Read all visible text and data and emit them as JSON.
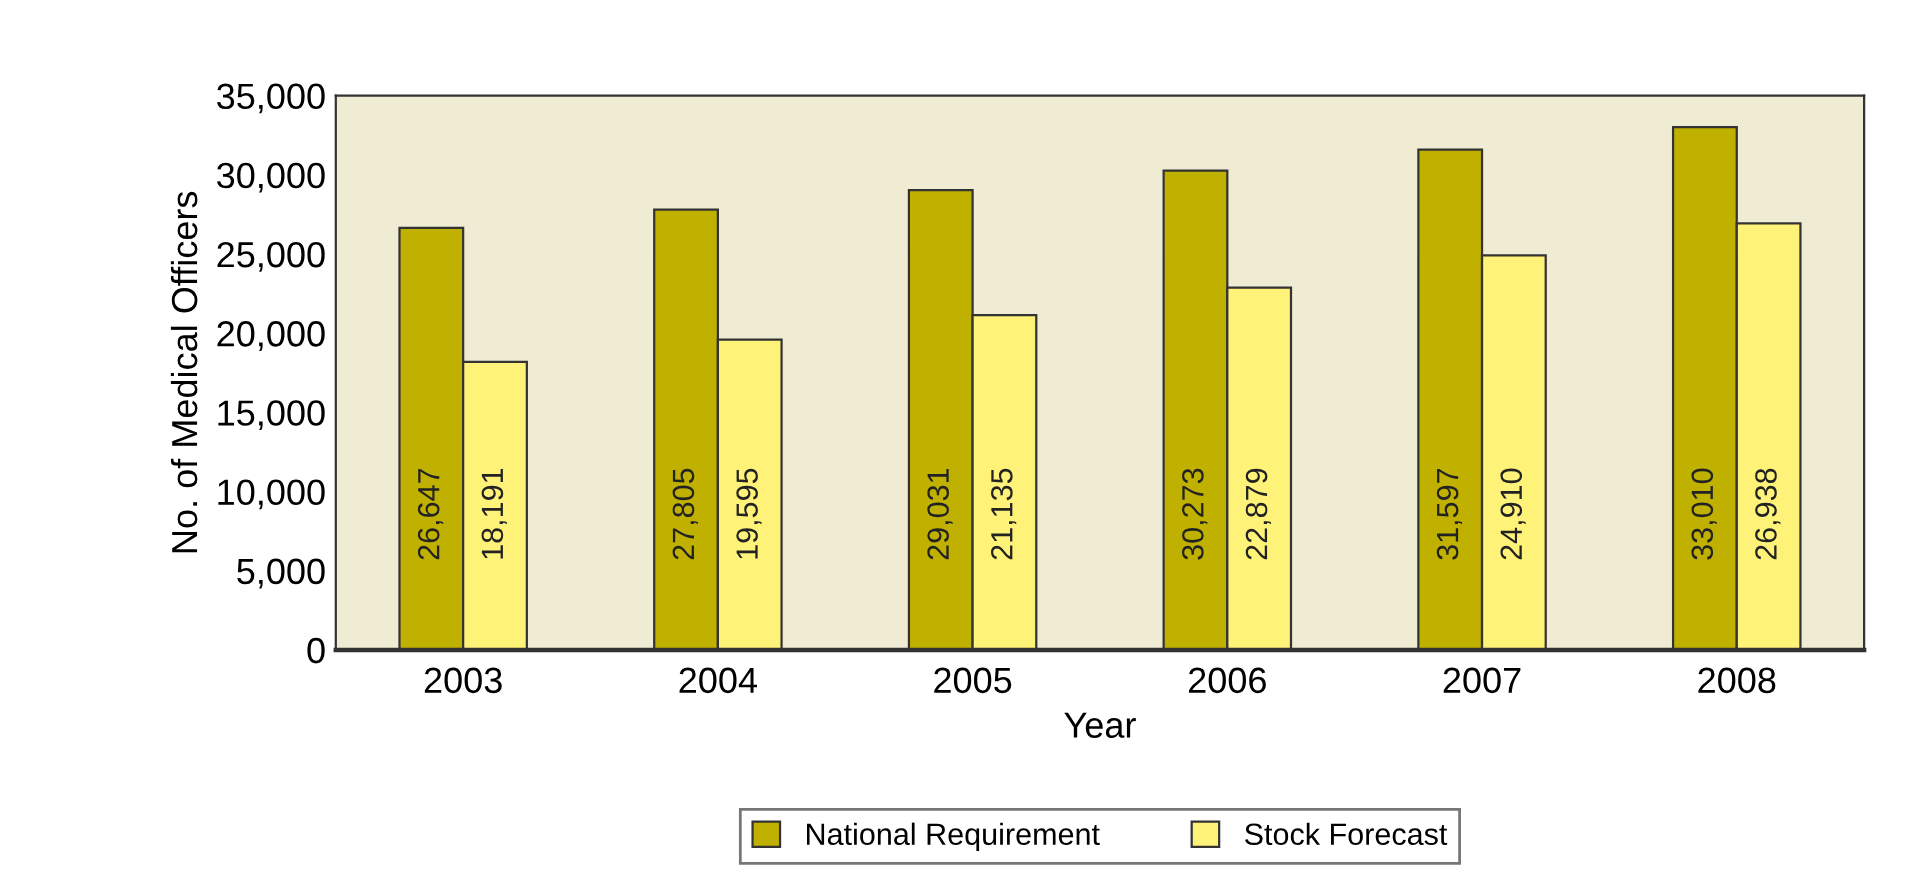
{
  "chart_data": {
    "type": "bar",
    "xlabel": "Year",
    "ylabel": "No. of Medical Officers",
    "categories": [
      "2003",
      "2004",
      "2005",
      "2006",
      "2007",
      "2008"
    ],
    "series": [
      {
        "name": "National Requirement",
        "color": "#c0b000",
        "values": [
          26647,
          27805,
          29031,
          30273,
          31597,
          33010
        ],
        "value_labels": [
          "26,647",
          "27,805",
          "29,031",
          "30,273",
          "31,597",
          "33,010"
        ]
      },
      {
        "name": "Stock Forecast",
        "color": "#fff278",
        "values": [
          18191,
          19595,
          21135,
          22879,
          24910,
          26938
        ],
        "value_labels": [
          "18,191",
          "19,595",
          "21,135",
          "22,879",
          "24,910",
          "26,938"
        ]
      }
    ],
    "ylim": [
      0,
      35000
    ],
    "yticks": [
      {
        "value": 0,
        "label": "0"
      },
      {
        "value": 5000,
        "label": "5,000"
      },
      {
        "value": 10000,
        "label": "10,000"
      },
      {
        "value": 15000,
        "label": "15,000"
      },
      {
        "value": 20000,
        "label": "20,000"
      },
      {
        "value": 25000,
        "label": "25,000"
      },
      {
        "value": 30000,
        "label": "30,000"
      },
      {
        "value": 35000,
        "label": "35,000"
      }
    ],
    "grid": false,
    "legend": "bottom"
  }
}
